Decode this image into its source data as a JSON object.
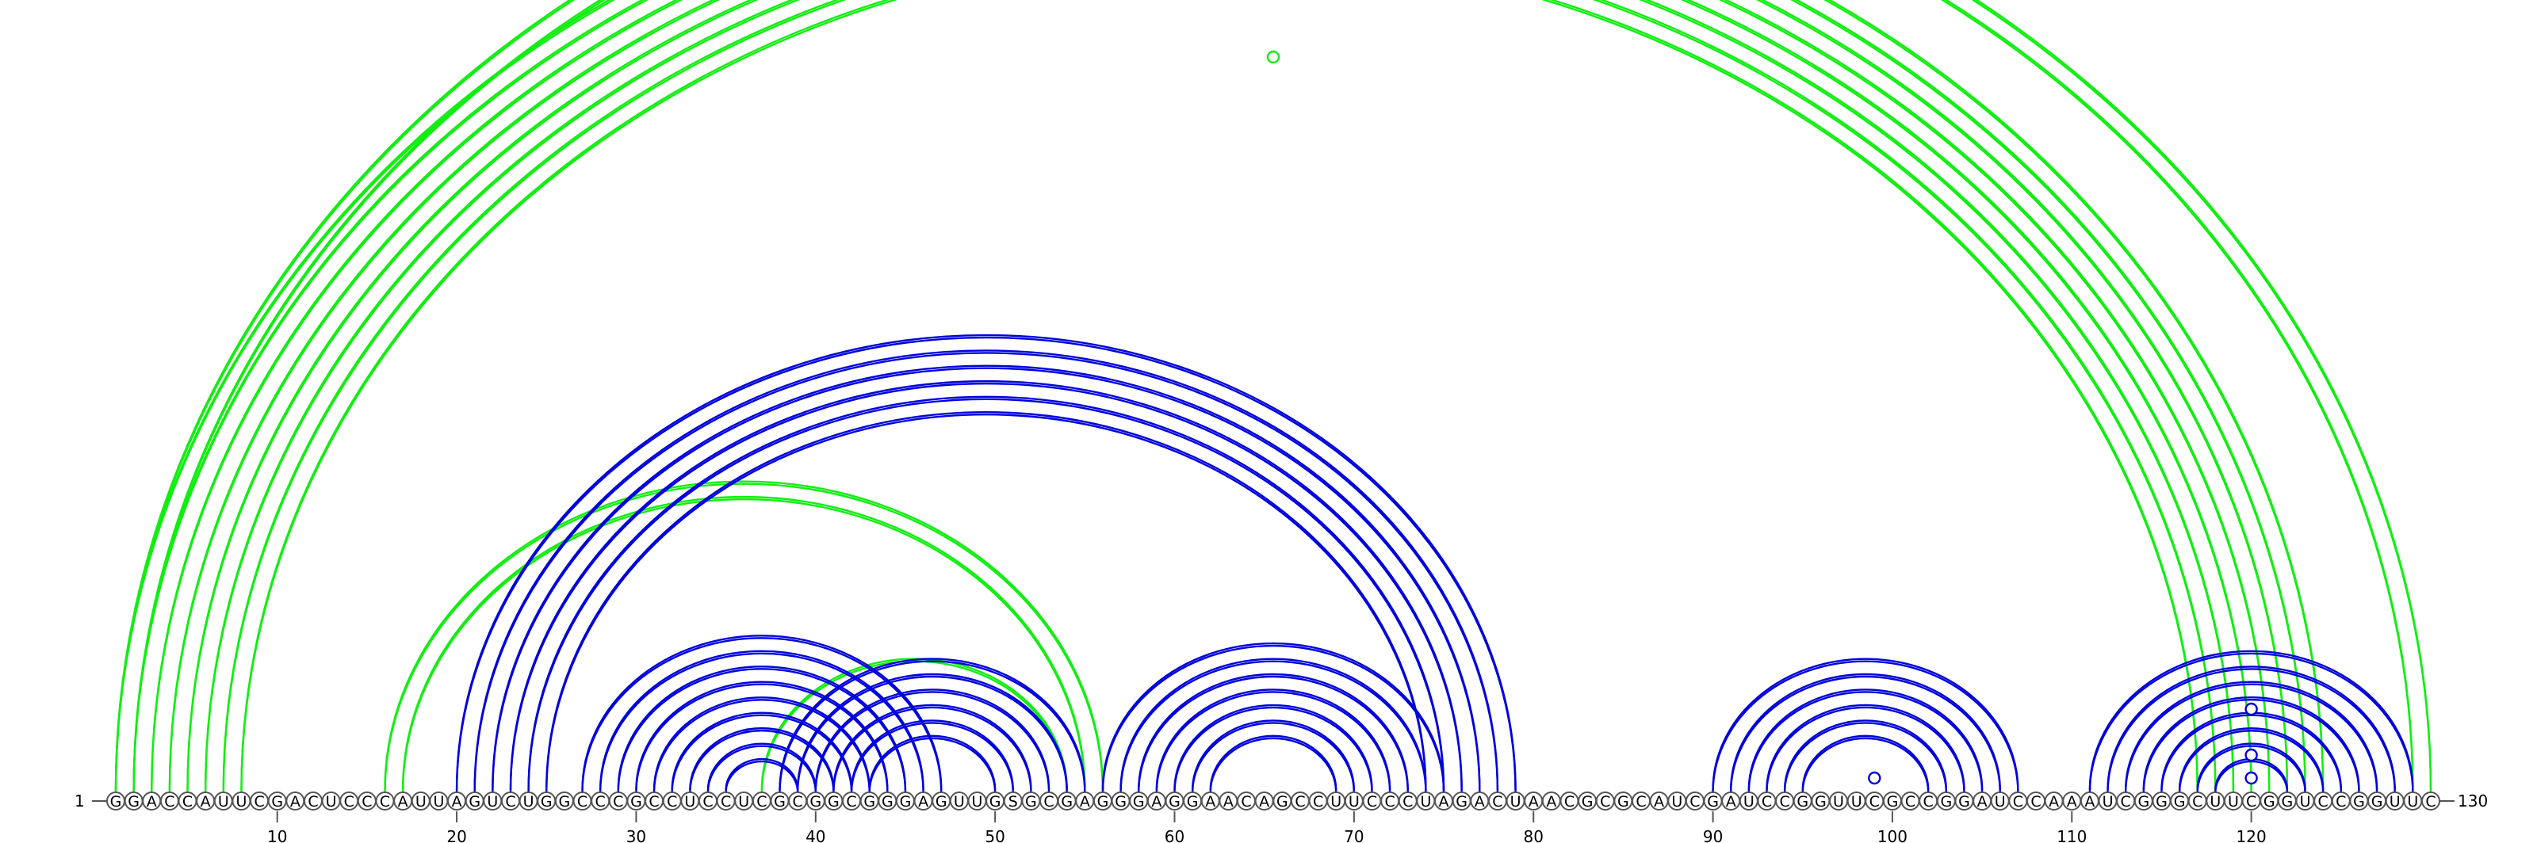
{
  "sequence": "GGACCAUUCGACUCCCAUUAGUCUGGCCCGCCUCCUCGCGGCGGGAGUUGSGCGAGGGAGGAACAGCCUUCCCUAGACUAACGCGCAUCGAUCCGGUUCGCCGGAUCCAAAUCGGGCUUCGGUCCGGUUC",
  "start_label": "1",
  "end_label": "130",
  "ticks": [
    10,
    20,
    30,
    40,
    50,
    60,
    70,
    80,
    90,
    100,
    110,
    120
  ],
  "colors": {
    "blue": "#0000dd",
    "green": "#11ee11"
  },
  "arc_groups": [
    {
      "color": "green",
      "outer": [
        1,
        124
      ],
      "count": 8,
      "kind": "stem"
    },
    {
      "color": "green",
      "outer": [
        1,
        130
      ],
      "count": 2,
      "kind": "stem"
    },
    {
      "color": "green",
      "outer": [
        16,
        56
      ],
      "count": 2,
      "kind": "stem"
    },
    {
      "color": "green",
      "outer": [
        37,
        54
      ],
      "count": 1,
      "kind": "stem"
    },
    {
      "color": "blue",
      "outer": [
        20,
        79
      ],
      "count": 6,
      "kind": "stem"
    },
    {
      "color": "blue",
      "outer": [
        27,
        47
      ],
      "count": 9,
      "kind": "stem"
    },
    {
      "color": "blue",
      "outer": [
        38,
        55
      ],
      "count": 6,
      "kind": "stem"
    },
    {
      "color": "blue",
      "outer": [
        56,
        75
      ],
      "count": 7,
      "kind": "stem"
    },
    {
      "color": "blue",
      "outer": [
        90,
        107
      ],
      "count": 6,
      "kind": "stem"
    },
    {
      "color": "blue",
      "outer": [
        111,
        129
      ],
      "count": 8,
      "kind": "stem"
    }
  ],
  "markers": [
    {
      "color": "green",
      "at": 65.5,
      "level": "top"
    },
    {
      "color": "blue",
      "at": 99,
      "level": 1
    },
    {
      "color": "blue",
      "at": 120,
      "level": 1
    },
    {
      "color": "blue",
      "at": 120,
      "level": 2
    },
    {
      "color": "blue",
      "at": 120,
      "level": 4
    }
  ]
}
